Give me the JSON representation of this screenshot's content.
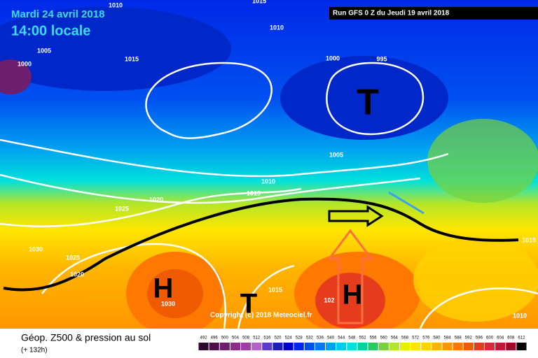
{
  "header": {
    "date": "Mardi 24 avril 2018",
    "time": "14:00 locale",
    "run": "Run GFS 0 Z du Jeudi 19 avril 2018"
  },
  "isobar_labels": [
    "1010",
    "1015",
    "1010",
    "1005",
    "1000",
    "1015",
    "1000",
    "995",
    "1005",
    "1010",
    "1015",
    "1025",
    "1020",
    "1030",
    "1025",
    "1020",
    "1030",
    "1015",
    "102",
    "1015",
    "1010"
  ],
  "pressure_centers": [
    "H",
    "T",
    "H",
    "T"
  ],
  "copyright": "Copyright (c) 2018 Meteociel.fr",
  "footer": {
    "title": "Géop. Z500 & pression au sol",
    "lead": "(+ 132h)"
  },
  "legend": {
    "values": [
      492,
      496,
      500,
      504,
      508,
      512,
      516,
      520,
      524,
      528,
      532,
      536,
      540,
      544,
      548,
      552,
      556,
      560,
      564,
      568,
      572,
      576,
      580,
      584,
      588,
      592,
      596,
      600,
      604,
      608,
      612
    ],
    "colors": [
      "#2d0a2d",
      "#4b0f4b",
      "#6e1e6e",
      "#8c2d8c",
      "#a03ca5",
      "#b464c8",
      "#5a3cc8",
      "#1e1eb4",
      "#0000c8",
      "#0028e6",
      "#0050f0",
      "#0078f0",
      "#00a0f0",
      "#00c8f0",
      "#00e0dc",
      "#00d2a0",
      "#28c864",
      "#78d23c",
      "#b4e628",
      "#e6f000",
      "#ffe600",
      "#ffd200",
      "#ffb400",
      "#ff9600",
      "#ff7800",
      "#f05a00",
      "#e63c1e",
      "#dc283c",
      "#c8143c",
      "#a00a28",
      "#000000"
    ]
  }
}
